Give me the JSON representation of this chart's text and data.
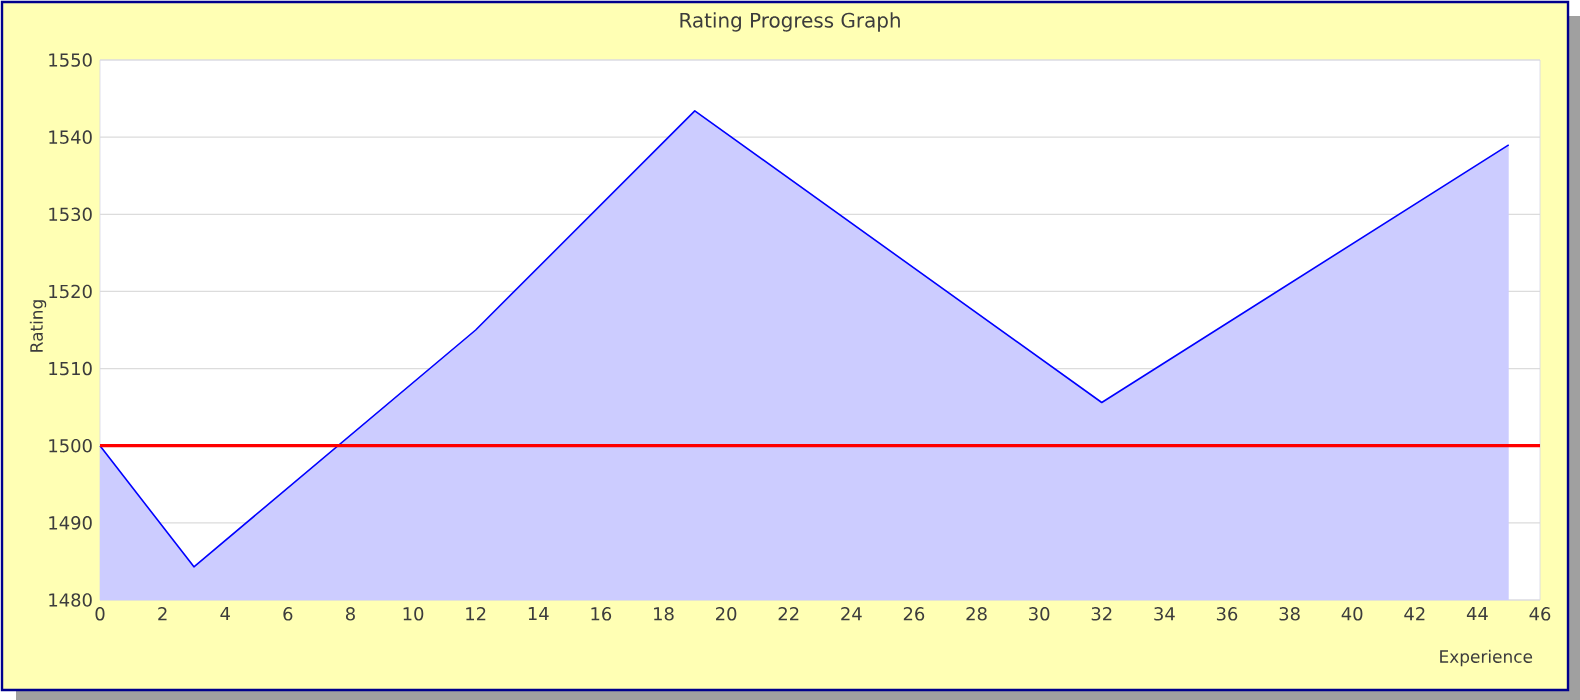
{
  "chart_data": {
    "type": "area",
    "title": "Rating Progress Graph",
    "xlabel": "Experience",
    "ylabel": "Rating",
    "x": [
      0,
      3,
      12,
      19,
      32,
      45
    ],
    "series": [
      {
        "color": "#0000ff",
        "values": [
          1500,
          1484.3,
          1515,
          1543.4,
          1505.6,
          1539
        ]
      }
    ],
    "xlim": [
      0,
      46
    ],
    "xticks": [
      0,
      2,
      4,
      6,
      8,
      10,
      12,
      14,
      16,
      18,
      20,
      22,
      24,
      26,
      28,
      30,
      32,
      34,
      36,
      38,
      40,
      42,
      44,
      46
    ],
    "ylim": [
      1480,
      1550
    ],
    "yticks": [
      1480,
      1490,
      1500,
      1510,
      1520,
      1530,
      1540,
      1550
    ],
    "grid": "y",
    "ref_lines": [
      {
        "axis": "y",
        "value": 1500,
        "color": "#ff0000"
      }
    ]
  }
}
